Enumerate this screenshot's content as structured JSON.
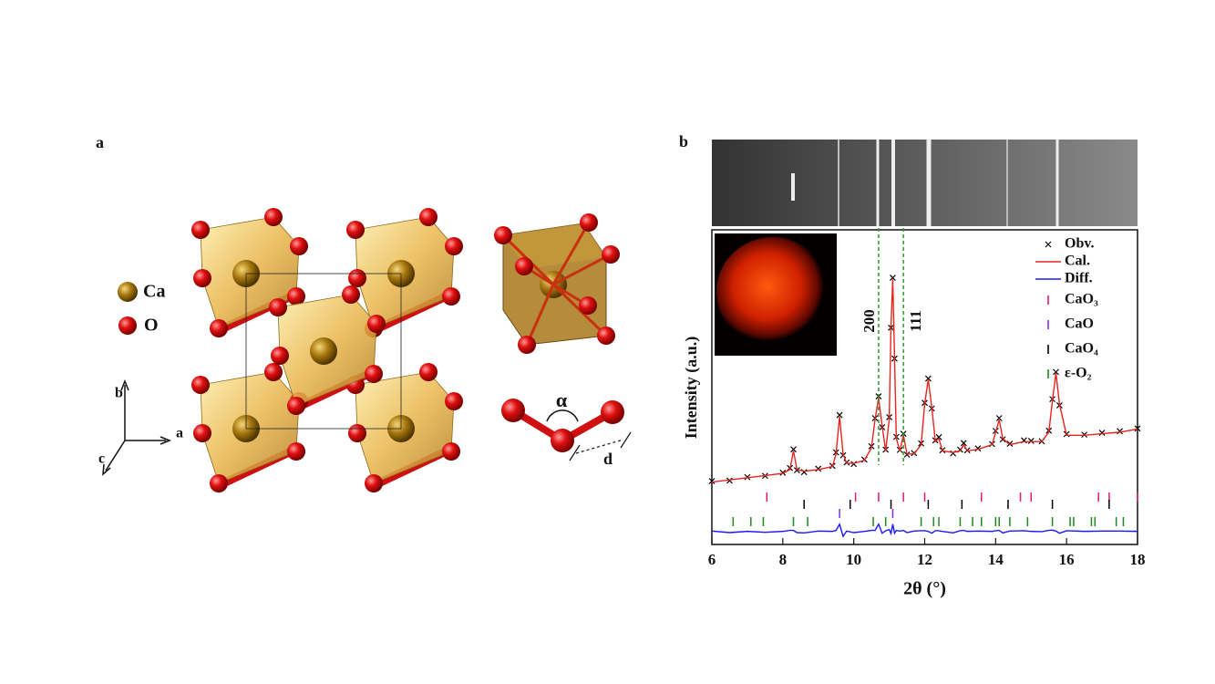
{
  "panel_a": {
    "label": "a",
    "legend": [
      "Ca",
      "O"
    ],
    "axes": [
      "b",
      "a",
      "c"
    ],
    "angle": "α",
    "distance": "d"
  },
  "chart_data": {
    "type": "line",
    "panel_label": "b",
    "xlabel": "2θ (°)",
    "ylabel": "Intensity (a.u.)",
    "xlim": [
      6,
      18
    ],
    "xticks": [
      6,
      8,
      10,
      12,
      14,
      16,
      18
    ],
    "ylim": [
      0,
      100
    ],
    "x": [
      6,
      6.5,
      7,
      7.5,
      8,
      8.2,
      8.3,
      8.4,
      8.6,
      9,
      9.4,
      9.5,
      9.6,
      9.7,
      9.8,
      10,
      10.3,
      10.5,
      10.6,
      10.7,
      10.8,
      10.9,
      11,
      11.05,
      11.1,
      11.15,
      11.2,
      11.3,
      11.4,
      11.5,
      11.7,
      11.9,
      12,
      12.1,
      12.2,
      12.3,
      12.4,
      12.5,
      12.8,
      13,
      13.1,
      13.2,
      13.5,
      13.9,
      14,
      14.1,
      14.2,
      14.4,
      14.8,
      15,
      15.3,
      15.5,
      15.6,
      15.7,
      15.8,
      16,
      16.5,
      17,
      17.5,
      18
    ],
    "series": [
      {
        "name": "Obv.",
        "color": "#000000",
        "style": "cross",
        "values": [
          20.3,
          20.5,
          21.6,
          22,
          23,
          24.5,
          30.5,
          23.8,
          23.2,
          24.3,
          25.2,
          29.5,
          41.5,
          28.6,
          26.3,
          25.8,
          27.2,
          31.5,
          40.5,
          47.5,
          37.6,
          30.4,
          40.8,
          69.5,
          85.5,
          59.6,
          34.5,
          30.3,
          35.5,
          28.8,
          29.3,
          32.4,
          45.4,
          53.2,
          43.6,
          33.4,
          34.4,
          30.2,
          29.2,
          30.4,
          32.5,
          30.2,
          30.8,
          32.2,
          36.4,
          40.5,
          33.7,
          32.3,
          33.4,
          33.2,
          33.1,
          36.5,
          46.6,
          55.3,
          44.6,
          35.4,
          35.2,
          35.8,
          36.3,
          37.2
        ]
      },
      {
        "name": "Cal.",
        "color": "#e8231f",
        "style": "line",
        "values": [
          20,
          20.7,
          21.4,
          22.1,
          22.8,
          24,
          30,
          24,
          23.5,
          24,
          25,
          29,
          41,
          29,
          26,
          26,
          27,
          31,
          40,
          47,
          38,
          30,
          40,
          70,
          85,
          60,
          34,
          30,
          35,
          29,
          29,
          32,
          45,
          53,
          44,
          33,
          34,
          30,
          29.5,
          30,
          32,
          30,
          30.5,
          32,
          36,
          40,
          34,
          32,
          33,
          33,
          33,
          36,
          46,
          55,
          45,
          35,
          35,
          35.5,
          36,
          37
        ]
      },
      {
        "name": "Diff.",
        "color": "#1a1aff",
        "style": "line",
        "values": [
          4.3,
          3.8,
          4.2,
          3.9,
          4.2,
          4.5,
          4.5,
          3.8,
          3.7,
          4.3,
          4.2,
          4.5,
          6.5,
          2.6,
          4.3,
          3.8,
          4.2,
          4.5,
          4.5,
          6.5,
          3.6,
          4.4,
          4.8,
          3.5,
          6.5,
          3.6,
          4.5,
          4.3,
          4.5,
          3.8,
          4.3,
          4.4,
          4.4,
          4.2,
          3.6,
          4.4,
          4.4,
          4.2,
          3.7,
          4.4,
          4.5,
          4.2,
          4.3,
          4.2,
          4.4,
          4.5,
          3.7,
          4.3,
          4.4,
          4.2,
          4.1,
          4.5,
          4.6,
          4.3,
          3.6,
          4.4,
          4.2,
          4.3,
          4.3,
          4.2
        ]
      }
    ],
    "reflections": [
      {
        "name": "CaO₃",
        "color": "#e0186e",
        "positions": [
          7.55,
          10.05,
          10.7,
          11.4,
          12.0,
          13.6,
          14.7,
          15.0,
          16.9,
          17.2,
          18.0
        ]
      },
      {
        "name": "CaO",
        "color": "#8a2be2",
        "positions": [
          9.6,
          11.1
        ]
      },
      {
        "name": "CaO₄",
        "color": "#000000",
        "positions": [
          8.6,
          9.9,
          11.05,
          12.1,
          13.05,
          14.35,
          15.6,
          17.2
        ]
      },
      {
        "name": "ε-O₂",
        "color": "#1e8a1e",
        "positions": [
          6.6,
          7.1,
          7.45,
          8.3,
          8.7,
          10.55,
          10.9,
          11.9,
          12.25,
          12.4,
          13.0,
          13.35,
          13.6,
          14.0,
          14.1,
          14.4,
          14.9,
          15.6,
          16.1,
          16.2,
          16.7,
          16.8,
          17.4,
          17.6
        ]
      }
    ],
    "peak_labels": [
      {
        "label": "200",
        "x": 10.7
      },
      {
        "label": "111",
        "x": 11.4
      }
    ],
    "peak_line_color": "#2e9a2e"
  }
}
